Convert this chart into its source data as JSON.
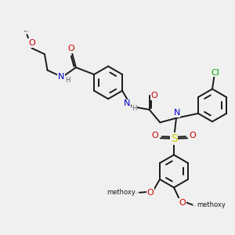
{
  "bg_color": "#f0f0f0",
  "bond_color": "#1a1a1a",
  "N_color": "#0000cc",
  "O_color": "#cc0000",
  "S_color": "#cccc00",
  "Cl_color": "#00aa00",
  "lw": 1.4,
  "figsize": [
    3.0,
    3.0
  ],
  "dpi": 100,
  "xlim": [
    0,
    10
  ],
  "ylim": [
    0,
    10
  ],
  "fs": 6.5
}
